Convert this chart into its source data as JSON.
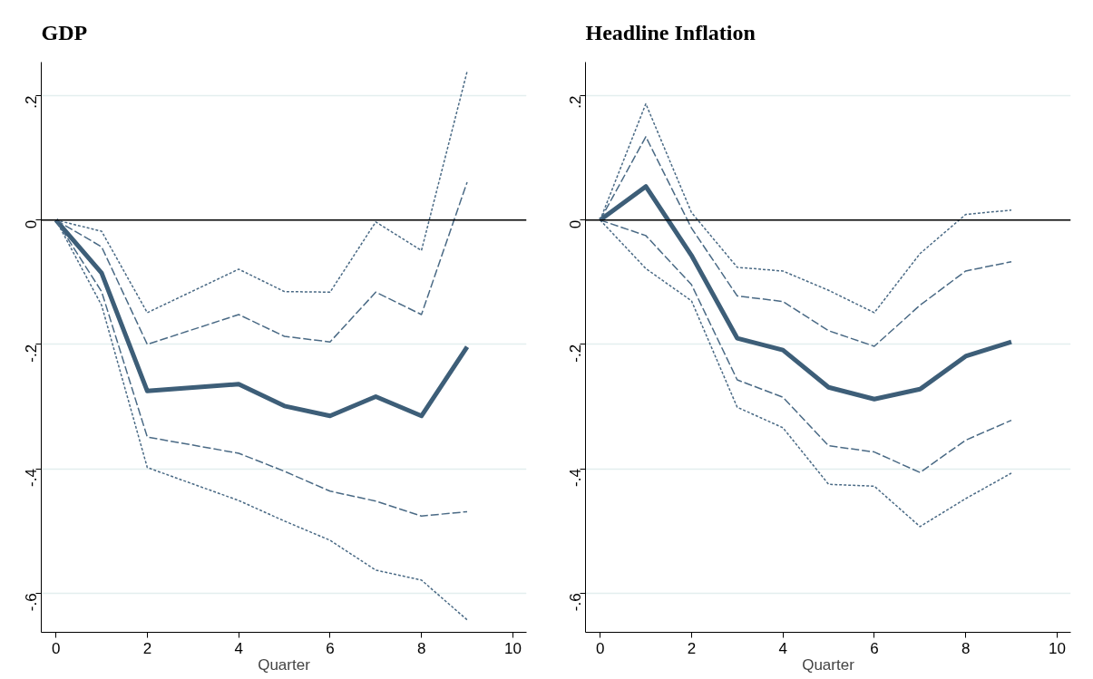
{
  "chart_data": [
    {
      "type": "line",
      "title": "GDP",
      "xlabel": "Quarter",
      "xlim": [
        -0.32,
        10.3
      ],
      "ylim": [
        -0.663,
        0.254
      ],
      "xticks": [
        0,
        2,
        4,
        6,
        8,
        10
      ],
      "yticks": [
        {
          "value": 0.2,
          "label": ".2"
        },
        0,
        {
          "value": -0.2,
          "label": "-.2"
        },
        {
          "value": -0.4,
          "label": "-.4"
        },
        {
          "value": -0.6,
          "label": "-.6"
        }
      ],
      "grid": "y",
      "marker": "none",
      "ref_lines": [
        {
          "axis": "y",
          "value": 0,
          "label": null,
          "color": "#000000",
          "line_style": "solid"
        }
      ],
      "series": [
        {
          "color": "#3d5e78",
          "line_style": "solid",
          "x": [
            0,
            1,
            2,
            4,
            5,
            6,
            7,
            8,
            9
          ],
          "values": [
            0,
            -0.085,
            -0.275,
            -0.264,
            -0.299,
            -0.315,
            -0.284,
            -0.315,
            -0.204
          ]
        },
        {
          "color": "#4a6a85",
          "line_style": "dashed",
          "x": [
            0,
            1,
            2,
            4,
            5,
            6,
            7,
            8,
            9
          ],
          "values": [
            0,
            -0.043,
            -0.2,
            -0.152,
            -0.187,
            -0.196,
            -0.116,
            -0.152,
            0.061
          ]
        },
        {
          "color": "#4a6a85",
          "line_style": "dotted",
          "x": [
            0,
            1,
            2,
            4,
            5,
            6,
            7,
            8,
            9
          ],
          "values": [
            0,
            -0.018,
            -0.149,
            -0.079,
            -0.115,
            -0.116,
            -0.003,
            -0.049,
            0.239
          ]
        },
        {
          "color": "#4a6a85",
          "line_style": "dashed",
          "x": [
            0,
            1,
            2,
            4,
            5,
            6,
            7,
            8,
            9
          ],
          "values": [
            0,
            -0.115,
            -0.349,
            -0.375,
            -0.404,
            -0.436,
            -0.452,
            -0.476,
            -0.469
          ]
        },
        {
          "color": "#4a6a85",
          "line_style": "dotted",
          "x": [
            0,
            1,
            2,
            4,
            5,
            6,
            7,
            8,
            9
          ],
          "values": [
            0,
            -0.137,
            -0.398,
            -0.451,
            -0.484,
            -0.515,
            -0.563,
            -0.579,
            -0.643
          ]
        }
      ]
    },
    {
      "type": "line",
      "title": "Headline Inflation",
      "xlabel": "Quarter",
      "xlim": [
        -0.32,
        10.3
      ],
      "ylim": [
        -0.663,
        0.254
      ],
      "xticks": [
        0,
        2,
        4,
        6,
        8,
        10
      ],
      "yticks": [
        {
          "value": 0.2,
          "label": ".2"
        },
        0,
        {
          "value": -0.2,
          "label": "-.2"
        },
        {
          "value": -0.4,
          "label": "-.4"
        },
        {
          "value": -0.6,
          "label": "-.6"
        }
      ],
      "grid": "y",
      "marker": "none",
      "ref_lines": [
        {
          "axis": "y",
          "value": 0,
          "label": null,
          "color": "#000000",
          "line_style": "solid"
        }
      ],
      "series": [
        {
          "color": "#3d5e78",
          "line_style": "solid",
          "x": [
            0,
            1,
            2,
            3,
            4,
            5,
            6,
            7,
            8,
            9
          ],
          "values": [
            0,
            0.054,
            -0.057,
            -0.19,
            -0.209,
            -0.269,
            -0.288,
            -0.272,
            -0.219,
            -0.196
          ]
        },
        {
          "color": "#4a6a85",
          "line_style": "dashed",
          "x": [
            0,
            1,
            2,
            3,
            4,
            5,
            6,
            7,
            8,
            9
          ],
          "values": [
            0,
            0.134,
            -0.013,
            -0.122,
            -0.131,
            -0.178,
            -0.203,
            -0.137,
            -0.082,
            -0.067
          ]
        },
        {
          "color": "#4a6a85",
          "line_style": "dotted",
          "x": [
            0,
            1,
            2,
            3,
            4,
            5,
            6,
            7,
            8,
            9
          ],
          "values": [
            0,
            0.187,
            0.012,
            -0.076,
            -0.082,
            -0.113,
            -0.149,
            -0.054,
            0.009,
            0.016
          ]
        },
        {
          "color": "#4a6a85",
          "line_style": "dashed",
          "x": [
            0,
            1,
            2,
            3,
            4,
            5,
            6,
            7,
            8,
            9
          ],
          "values": [
            0,
            -0.025,
            -0.104,
            -0.257,
            -0.285,
            -0.363,
            -0.373,
            -0.406,
            -0.354,
            -0.322
          ]
        },
        {
          "color": "#4a6a85",
          "line_style": "dotted",
          "x": [
            0,
            1,
            2,
            3,
            4,
            5,
            6,
            7,
            8,
            9
          ],
          "values": [
            0,
            -0.078,
            -0.13,
            -0.301,
            -0.334,
            -0.425,
            -0.428,
            -0.493,
            -0.448,
            -0.407
          ]
        }
      ]
    }
  ]
}
